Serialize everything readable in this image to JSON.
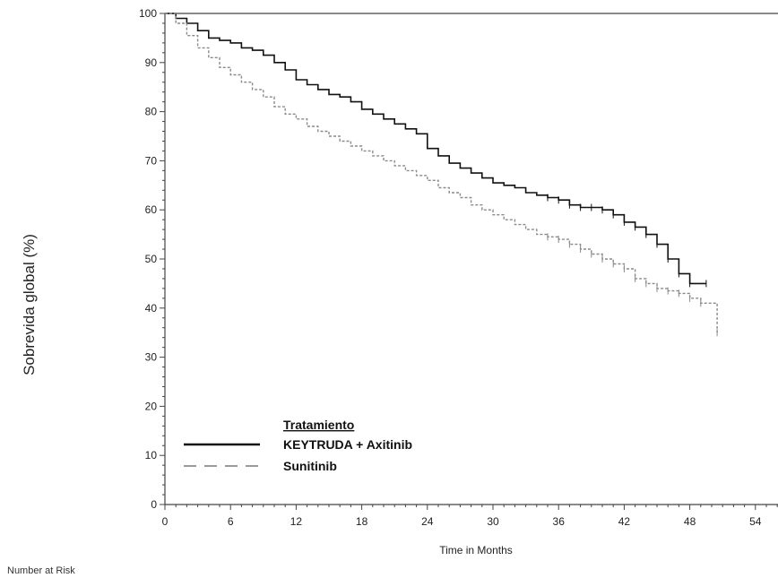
{
  "chart_data": {
    "type": "line",
    "xlabel": "Time in Months",
    "ylabel": "Sobrevida global (%)",
    "xlim": [
      0,
      57
    ],
    "ylim": [
      0,
      100
    ],
    "x_ticks": [
      0,
      6,
      12,
      18,
      24,
      30,
      36,
      42,
      48,
      54
    ],
    "y_ticks": [
      0,
      10,
      20,
      30,
      40,
      50,
      60,
      70,
      80,
      90,
      100
    ],
    "legend": {
      "title": "Tratamiento",
      "placement": "bottom-left",
      "entries": [
        "KEYTRUDA + Axitinib",
        "Sunitinib"
      ]
    },
    "series": [
      {
        "name": "KEYTRUDA + Axitinib",
        "color": "#111111",
        "style": "solid",
        "x": [
          0,
          1,
          2,
          3,
          4,
          5,
          6,
          7,
          8,
          9,
          10,
          11,
          12,
          13,
          14,
          15,
          16,
          17,
          18,
          19,
          20,
          21,
          22,
          23,
          24,
          25,
          26,
          27,
          28,
          29,
          30,
          31,
          32,
          33,
          34,
          35,
          36,
          37,
          38,
          39,
          40,
          41,
          42,
          43,
          44,
          45,
          46,
          47,
          48,
          49.5
        ],
        "y": [
          100,
          99,
          98,
          96.5,
          95,
          94.5,
          94,
          93,
          92.5,
          91.5,
          90,
          88.5,
          86.5,
          85.5,
          84.5,
          83.5,
          83,
          82,
          80.5,
          79.5,
          78.5,
          77.5,
          76.5,
          75.5,
          72.5,
          71,
          69.5,
          68.5,
          67.5,
          66.5,
          65.5,
          65,
          64.5,
          63.5,
          63,
          62.5,
          62,
          61,
          60.5,
          60.5,
          60,
          59,
          57.5,
          56.5,
          55,
          53,
          50,
          47,
          45,
          45
        ]
      },
      {
        "name": "Sunitinib",
        "color": "#8a8a8a",
        "style": "dashed",
        "x": [
          0,
          1,
          2,
          3,
          4,
          5,
          6,
          7,
          8,
          9,
          10,
          11,
          12,
          13,
          14,
          15,
          16,
          17,
          18,
          19,
          20,
          21,
          22,
          23,
          24,
          25,
          26,
          27,
          28,
          29,
          30,
          31,
          32,
          33,
          34,
          35,
          36,
          37,
          38,
          39,
          40,
          41,
          42,
          43,
          44,
          45,
          46,
          47,
          48,
          49,
          50.5
        ],
        "y": [
          100,
          98,
          95.5,
          93,
          91,
          89,
          87.5,
          86,
          84.5,
          83,
          81,
          79.5,
          78.5,
          77,
          76,
          75,
          74,
          73,
          72,
          71,
          70,
          69,
          68,
          67,
          66,
          64.5,
          63.5,
          62.5,
          61,
          60,
          59,
          58,
          57,
          56,
          55,
          54.5,
          54,
          53,
          52,
          51,
          50,
          49,
          48,
          46,
          45,
          44,
          43.5,
          43,
          42,
          41,
          35
        ]
      }
    ]
  },
  "footer": {
    "number_at_risk_label": "Number at Risk"
  }
}
